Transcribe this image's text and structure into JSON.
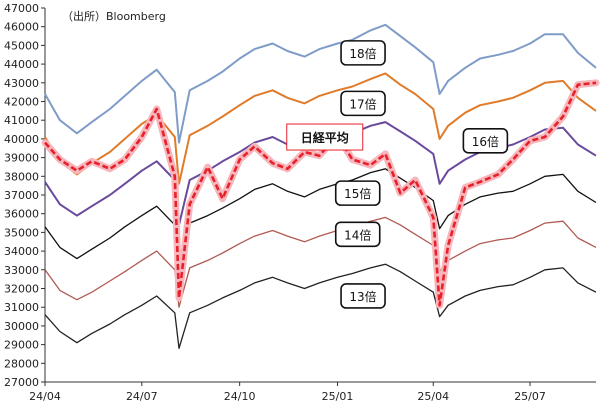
{
  "chart_data": {
    "type": "line",
    "source_note": "（出所）Bloomberg",
    "x": [
      "2024-04-01",
      "2024-04-15",
      "2024-05-01",
      "2024-05-15",
      "2024-06-01",
      "2024-06-15",
      "2024-07-01",
      "2024-07-15",
      "2024-08-01",
      "2024-08-05",
      "2024-08-15",
      "2024-09-01",
      "2024-09-15",
      "2024-10-01",
      "2024-10-15",
      "2024-11-01",
      "2024-11-15",
      "2024-12-01",
      "2024-12-15",
      "2025-01-01",
      "2025-01-15",
      "2025-02-01",
      "2025-02-15",
      "2025-03-01",
      "2025-03-15",
      "2025-04-01",
      "2025-04-07",
      "2025-04-15",
      "2025-05-01",
      "2025-05-15",
      "2025-06-01",
      "2025-06-15",
      "2025-07-01",
      "2025-07-15",
      "2025-08-01",
      "2025-08-15",
      "2025-09-01"
    ],
    "x_ticks": [
      {
        "date": "2024-04-01",
        "label": "24/04"
      },
      {
        "date": "2024-07-01",
        "label": "24/07"
      },
      {
        "date": "2024-10-01",
        "label": "24/10"
      },
      {
        "date": "2025-01-01",
        "label": "25/01"
      },
      {
        "date": "2025-04-01",
        "label": "25/04"
      },
      {
        "date": "2025-07-01",
        "label": "25/07"
      }
    ],
    "ylim": [
      27000,
      47000
    ],
    "yticks": [
      27000,
      28000,
      29000,
      30000,
      31000,
      32000,
      33000,
      34000,
      35000,
      36000,
      37000,
      38000,
      39000,
      40000,
      41000,
      42000,
      43000,
      44000,
      45000,
      46000,
      47000
    ],
    "series": [
      {
        "name": "18倍",
        "color": "#7f9cc8",
        "values": [
          42400,
          41000,
          40300,
          40900,
          41600,
          42300,
          43100,
          43700,
          42500,
          39800,
          42600,
          43100,
          43600,
          44300,
          44800,
          45100,
          44700,
          44400,
          44800,
          45100,
          45300,
          45800,
          46100,
          45500,
          44900,
          44100,
          42400,
          43100,
          43800,
          44300,
          44500,
          44700,
          45100,
          45600,
          45600,
          44600,
          43800
        ]
      },
      {
        "name": "17倍",
        "color": "#e07b2a",
        "values": [
          40100,
          38800,
          38100,
          38700,
          39300,
          40000,
          40800,
          41300,
          40100,
          37600,
          40200,
          40700,
          41200,
          41800,
          42300,
          42600,
          42200,
          41900,
          42300,
          42600,
          42800,
          43200,
          43500,
          42900,
          42400,
          41600,
          40000,
          40700,
          41400,
          41800,
          42000,
          42200,
          42600,
          43000,
          43100,
          42200,
          41500
        ]
      },
      {
        "name": "16倍",
        "color": "#6a4a9c",
        "values": [
          37700,
          36500,
          35900,
          36400,
          37000,
          37600,
          38300,
          38800,
          37800,
          35400,
          37800,
          38300,
          38800,
          39300,
          39800,
          40100,
          39700,
          39400,
          39800,
          40100,
          40300,
          40700,
          40900,
          40400,
          39900,
          39200,
          37600,
          38300,
          38900,
          39300,
          39500,
          39700,
          40100,
          40500,
          40600,
          39700,
          39100
        ]
      },
      {
        "name": "15倍",
        "color": "#111111",
        "values": [
          35300,
          34200,
          33600,
          34100,
          34700,
          35300,
          35900,
          36400,
          35400,
          33200,
          35500,
          35900,
          36300,
          36800,
          37300,
          37600,
          37200,
          36900,
          37300,
          37600,
          37800,
          38200,
          38400,
          37900,
          37400,
          36700,
          35200,
          35900,
          36500,
          36900,
          37100,
          37200,
          37600,
          38000,
          38100,
          37200,
          36600
        ]
      },
      {
        "name": "14倍",
        "color": "#b05a52",
        "values": [
          33000,
          31900,
          31400,
          31800,
          32400,
          32900,
          33500,
          34000,
          33000,
          31000,
          33100,
          33500,
          33900,
          34400,
          34800,
          35100,
          34800,
          34500,
          34800,
          35100,
          35300,
          35600,
          35800,
          35400,
          34900,
          34300,
          32900,
          33500,
          34000,
          34400,
          34600,
          34700,
          35100,
          35500,
          35600,
          34700,
          34200
        ]
      },
      {
        "name": "13倍",
        "color": "#222222",
        "values": [
          30600,
          29700,
          29100,
          29600,
          30100,
          30600,
          31100,
          31600,
          30700,
          28800,
          30700,
          31100,
          31500,
          31900,
          32300,
          32600,
          32300,
          32000,
          32300,
          32600,
          32800,
          33100,
          33300,
          32900,
          32400,
          31800,
          30500,
          31100,
          31600,
          31900,
          32100,
          32200,
          32600,
          33000,
          33100,
          32300,
          31800
        ]
      },
      {
        "name": "日経平均",
        "color": "#e8202a",
        "style": "dashed",
        "values": [
          39800,
          38900,
          38300,
          38800,
          38400,
          38900,
          40100,
          41600,
          38000,
          31500,
          36500,
          38500,
          36800,
          38900,
          39600,
          38700,
          38400,
          39300,
          39100,
          40200,
          38900,
          38600,
          39200,
          37100,
          37800,
          35800,
          31100,
          34300,
          37400,
          37700,
          38100,
          38900,
          39900,
          40100,
          41200,
          42900,
          43000
        ]
      }
    ],
    "labels": [
      {
        "text": "18倍",
        "date": "2025-01-25",
        "value": 44600
      },
      {
        "text": "17倍",
        "date": "2025-01-25",
        "value": 41900
      },
      {
        "text": "日経平均",
        "date": "2024-12-20",
        "value": 40100
      },
      {
        "text": "16倍",
        "date": "2025-05-20",
        "value": 39900
      },
      {
        "text": "15倍",
        "date": "2025-01-20",
        "value": 37100
      },
      {
        "text": "14倍",
        "date": "2025-01-20",
        "value": 34900
      },
      {
        "text": "13倍",
        "date": "2025-01-25",
        "value": 31600
      }
    ]
  }
}
